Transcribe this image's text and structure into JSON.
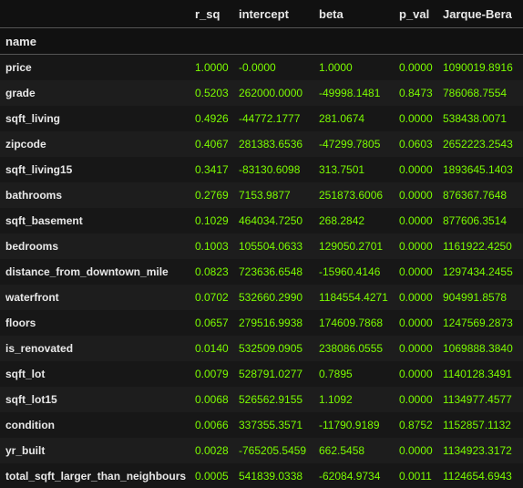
{
  "table": {
    "index_name": "name",
    "columns": [
      "r_sq",
      "intercept",
      "beta",
      "p_val",
      "Jarque-Bera"
    ],
    "rows": [
      {
        "name": "price",
        "values": [
          "1.0000",
          "-0.0000",
          "1.0000",
          "0.0000",
          "1090019.8916"
        ]
      },
      {
        "name": "grade",
        "values": [
          "0.5203",
          "262000.0000",
          "-49998.1481",
          "0.8473",
          "786068.7554"
        ]
      },
      {
        "name": "sqft_living",
        "values": [
          "0.4926",
          "-44772.1777",
          "281.0674",
          "0.0000",
          "538438.0071"
        ]
      },
      {
        "name": "zipcode",
        "values": [
          "0.4067",
          "281383.6536",
          "-47299.7805",
          "0.0603",
          "2652223.2543"
        ]
      },
      {
        "name": "sqft_living15",
        "values": [
          "0.3417",
          "-83130.6098",
          "313.7501",
          "0.0000",
          "1893645.1403"
        ]
      },
      {
        "name": "bathrooms",
        "values": [
          "0.2769",
          "7153.9877",
          "251873.6006",
          "0.0000",
          "876367.7648"
        ]
      },
      {
        "name": "sqft_basement",
        "values": [
          "0.1029",
          "464034.7250",
          "268.2842",
          "0.0000",
          "877606.3514"
        ]
      },
      {
        "name": "bedrooms",
        "values": [
          "0.1003",
          "105504.0633",
          "129050.2701",
          "0.0000",
          "1161922.4250"
        ]
      },
      {
        "name": "distance_from_downtown_mile",
        "values": [
          "0.0823",
          "723636.6548",
          "-15960.4146",
          "0.0000",
          "1297434.2455"
        ]
      },
      {
        "name": "waterfront",
        "values": [
          "0.0702",
          "532660.2990",
          "1184554.4271",
          "0.0000",
          "904991.8578"
        ]
      },
      {
        "name": "floors",
        "values": [
          "0.0657",
          "279516.9938",
          "174609.7868",
          "0.0000",
          "1247569.2873"
        ]
      },
      {
        "name": "is_renovated",
        "values": [
          "0.0140",
          "532509.0905",
          "238086.0555",
          "0.0000",
          "1069888.3840"
        ]
      },
      {
        "name": "sqft_lot",
        "values": [
          "0.0079",
          "528791.0277",
          "0.7895",
          "0.0000",
          "1140128.3491"
        ]
      },
      {
        "name": "sqft_lot15",
        "values": [
          "0.0068",
          "526562.9155",
          "1.1092",
          "0.0000",
          "1134977.4577"
        ]
      },
      {
        "name": "condition",
        "values": [
          "0.0066",
          "337355.3571",
          "-11790.9189",
          "0.8752",
          "1152857.1132"
        ]
      },
      {
        "name": "yr_built",
        "values": [
          "0.0028",
          "-765205.5459",
          "662.5458",
          "0.0000",
          "1134923.3172"
        ]
      },
      {
        "name": "total_sqft_larger_than_neighbours",
        "values": [
          "0.0005",
          "541839.0338",
          "-62084.9734",
          "0.0011",
          "1124654.6943"
        ]
      }
    ]
  },
  "colors": {
    "background": "#111111",
    "header_text": "#e8e8e8",
    "value_text": "#7cfc00"
  }
}
